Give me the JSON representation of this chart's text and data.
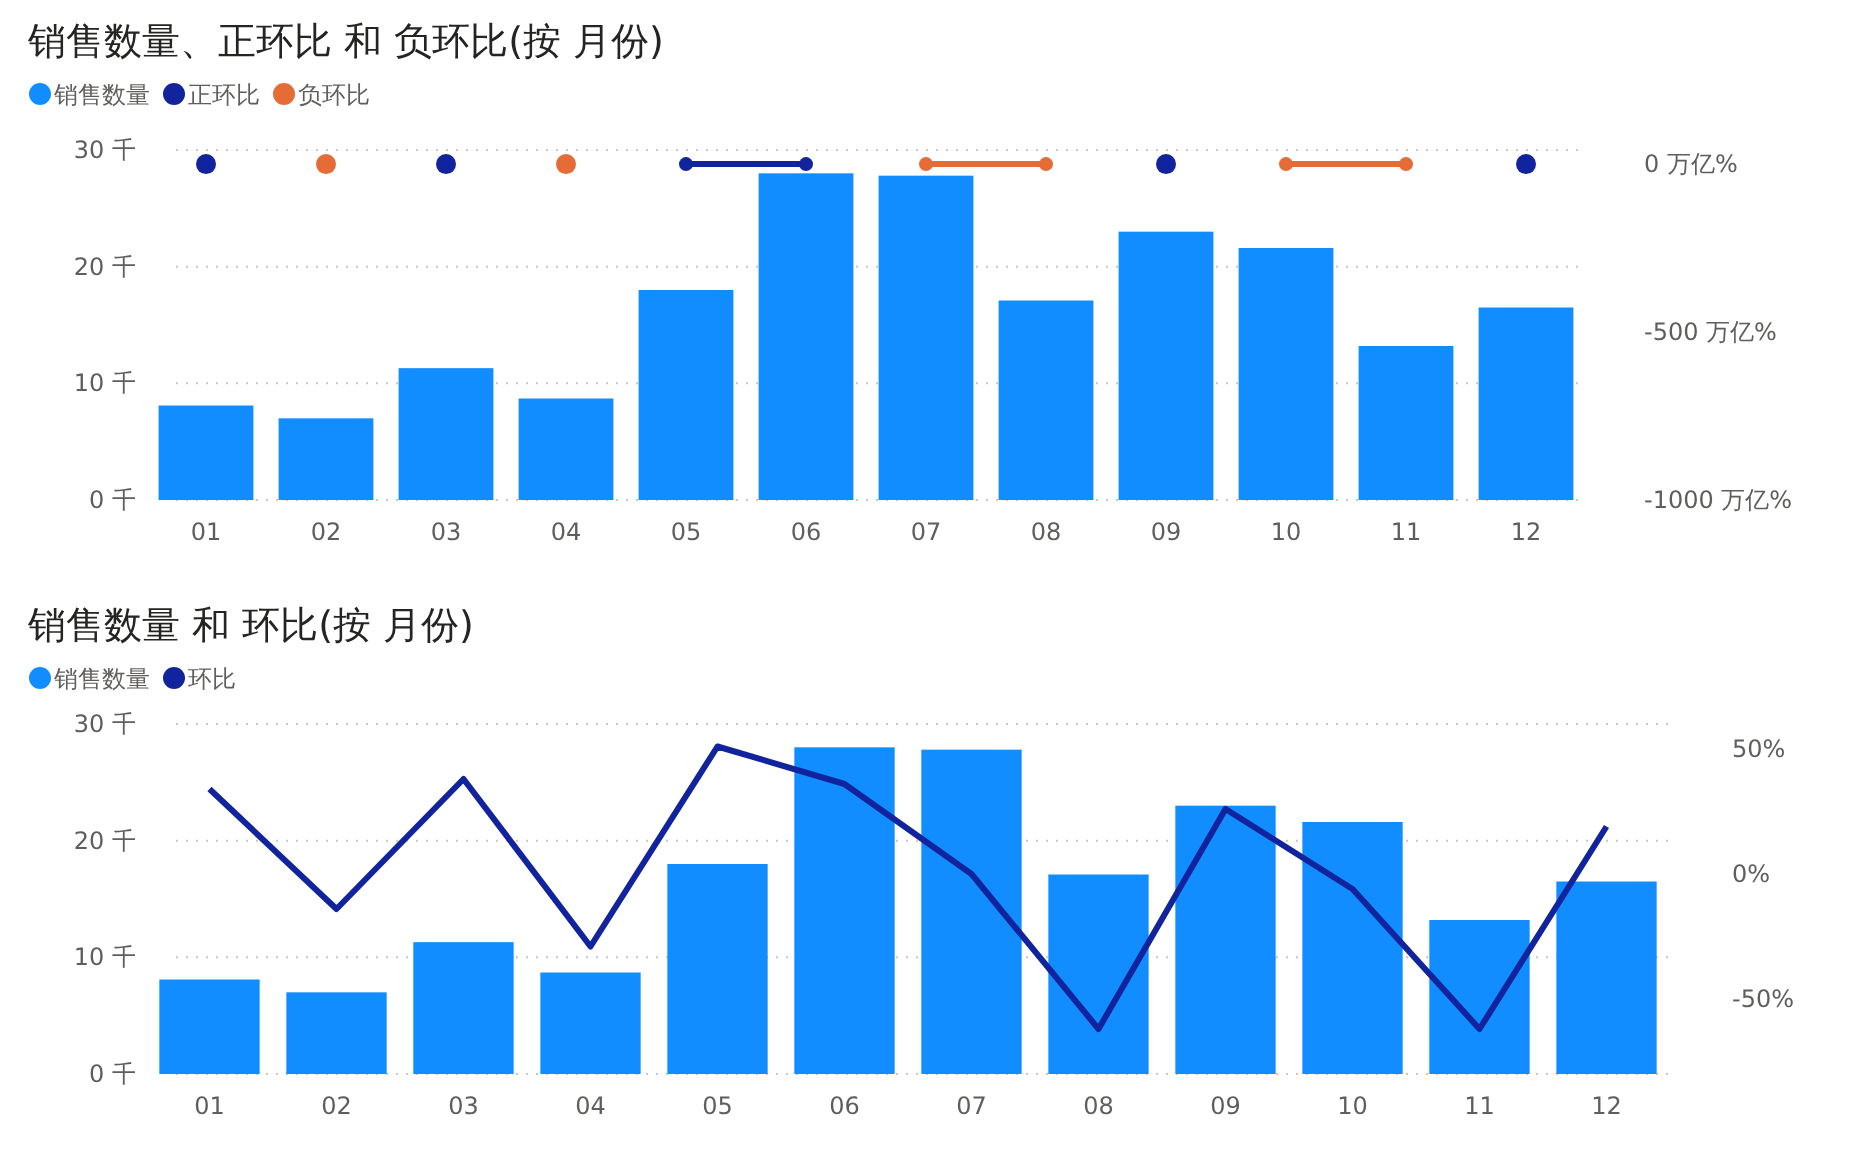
{
  "chart_data": [
    {
      "type": "bar",
      "title": "销售数量、正环比 和 负环比(按 月份)",
      "categories": [
        "01",
        "02",
        "03",
        "04",
        "05",
        "06",
        "07",
        "08",
        "09",
        "10",
        "11",
        "12"
      ],
      "series": [
        {
          "name": "销售数量",
          "color": "#118dff",
          "values": [
            8.1,
            7.0,
            11.3,
            8.7,
            18.0,
            28.0,
            27.8,
            17.1,
            23.0,
            21.6,
            13.2,
            16.5
          ]
        },
        {
          "name": "正环比",
          "type": "line",
          "axis": "y2",
          "color": "#12239e",
          "values": [
            0,
            null,
            0,
            null,
            0,
            0,
            null,
            null,
            0,
            null,
            null,
            0
          ]
        },
        {
          "name": "负环比",
          "type": "line",
          "axis": "y2",
          "color": "#e66c37",
          "values": [
            null,
            0,
            null,
            0,
            null,
            null,
            0,
            0,
            null,
            0,
            0,
            null
          ]
        }
      ],
      "ylim": [
        0,
        30
      ],
      "yticks": [
        {
          "value": 0,
          "label": "0 千"
        },
        {
          "value": 10,
          "label": "10 千"
        },
        {
          "value": 20,
          "label": "20 千"
        },
        {
          "value": 30,
          "label": "30 千"
        }
      ],
      "y2lim": [
        -1000,
        42
      ],
      "y2ticks": [
        {
          "value": 0,
          "label": "0 万亿%"
        },
        {
          "value": -500,
          "label": "-500 万亿%"
        },
        {
          "value": -1000,
          "label": "-1000 万亿%"
        }
      ],
      "grid": "y",
      "legend": "top left",
      "marker": "circle"
    },
    {
      "type": "bar",
      "title": "销售数量 和 环比(按 月份)",
      "categories": [
        "01",
        "02",
        "03",
        "04",
        "05",
        "06",
        "07",
        "08",
        "09",
        "10",
        "11",
        "12"
      ],
      "series": [
        {
          "name": "销售数量",
          "color": "#118dff",
          "values": [
            8.1,
            7.0,
            11.3,
            8.7,
            18.0,
            28.0,
            27.8,
            17.1,
            23.0,
            21.6,
            13.2,
            16.5
          ]
        },
        {
          "name": "环比",
          "type": "line",
          "axis": "y2",
          "color": "#12239e",
          "values": [
            34,
            -14,
            38,
            -29,
            51,
            36,
            0,
            -62,
            26,
            -6,
            -62,
            19
          ]
        }
      ],
      "ylim": [
        0,
        30
      ],
      "yticks": [
        {
          "value": 0,
          "label": "0 千"
        },
        {
          "value": 10,
          "label": "10 千"
        },
        {
          "value": 20,
          "label": "20 千"
        },
        {
          "value": 30,
          "label": "30 千"
        }
      ],
      "y2lim": [
        -80,
        60
      ],
      "y2ticks": [
        {
          "value": 50,
          "label": "50%"
        },
        {
          "value": 0,
          "label": "0%"
        },
        {
          "value": -50,
          "label": "-50%"
        }
      ],
      "grid": "y",
      "legend": "top left"
    }
  ]
}
